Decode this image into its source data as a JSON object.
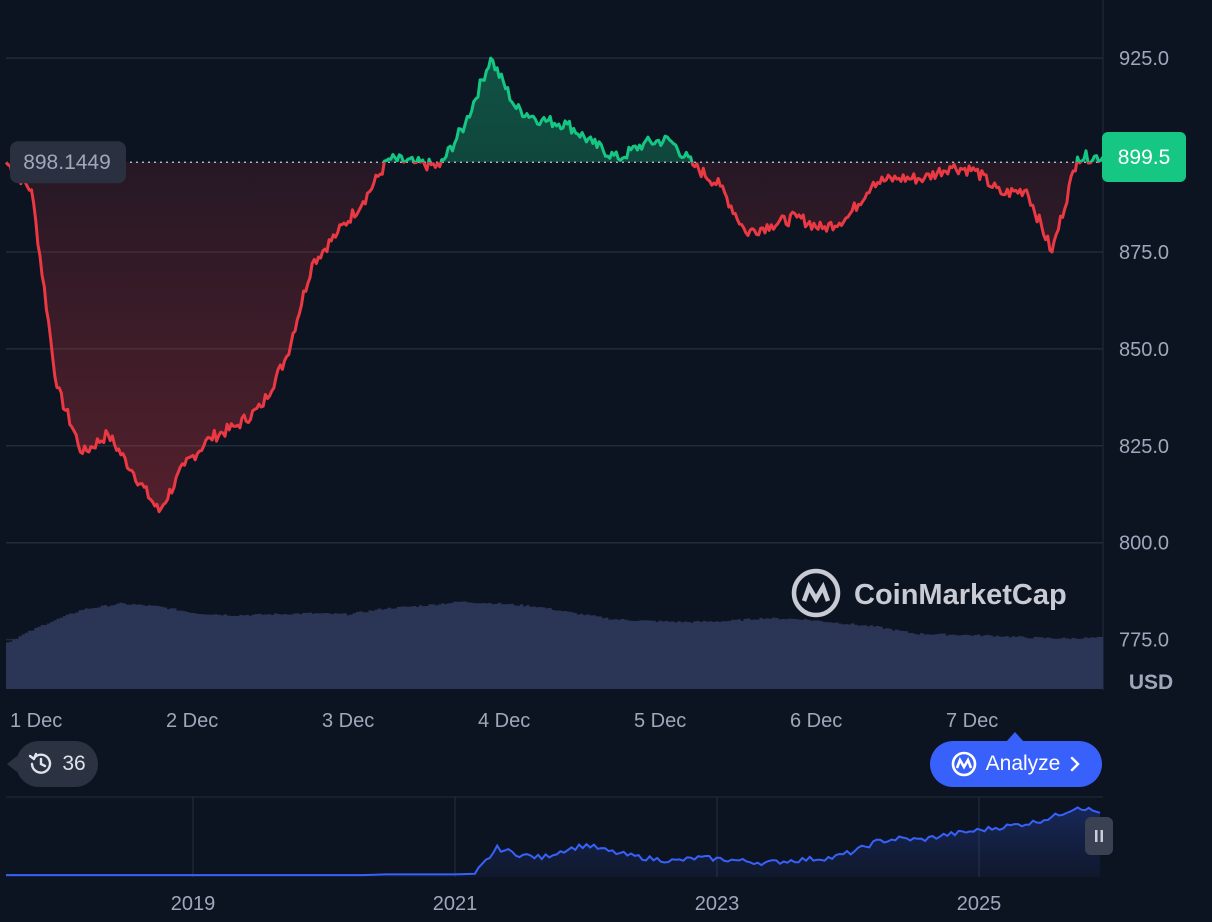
{
  "chart_data": {
    "type": "line",
    "price": {
      "x": [
        "1 Dec 00:00",
        "1 Dec 04:00",
        "1 Dec 08:00",
        "1 Dec 12:00",
        "1 Dec 16:00",
        "1 Dec 20:00",
        "2 Dec 00:00",
        "2 Dec 04:00",
        "2 Dec 08:00",
        "2 Dec 12:00",
        "2 Dec 16:00",
        "2 Dec 20:00",
        "3 Dec 00:00",
        "3 Dec 04:00",
        "3 Dec 08:00",
        "3 Dec 12:00",
        "3 Dec 16:00",
        "3 Dec 20:00",
        "4 Dec 00:00",
        "4 Dec 04:00",
        "4 Dec 08:00",
        "4 Dec 12:00",
        "4 Dec 16:00",
        "4 Dec 20:00",
        "5 Dec 00:00",
        "5 Dec 04:00",
        "5 Dec 08:00",
        "5 Dec 12:00",
        "5 Dec 16:00",
        "5 Dec 20:00",
        "6 Dec 00:00",
        "6 Dec 04:00",
        "6 Dec 08:00",
        "6 Dec 12:00",
        "6 Dec 16:00",
        "6 Dec 20:00",
        "7 Dec 00:00",
        "7 Dec 04:00",
        "7 Dec 08:00",
        "7 Dec 12:00",
        "7 Dec 16:00",
        "7 Dec 20:00",
        "8 Dec 00:00",
        "8 Dec 04:00"
      ],
      "values": [
        898.1,
        891,
        840,
        823,
        828,
        818,
        808,
        820,
        827,
        830,
        835,
        848,
        872,
        880,
        888,
        899,
        898,
        897,
        908,
        925,
        912,
        909,
        908,
        903,
        899,
        903,
        904,
        897,
        892,
        880,
        882,
        884,
        881,
        884,
        893,
        894,
        894,
        897,
        896,
        890,
        891,
        875,
        899.5,
        899.5
      ]
    },
    "volume_relative": [
      0.48,
      0.67,
      0.82,
      0.88,
      0.85,
      0.78,
      0.76,
      0.77,
      0.78,
      0.77,
      0.83,
      0.86,
      0.9,
      0.88,
      0.85,
      0.78,
      0.72,
      0.7,
      0.69,
      0.7,
      0.73,
      0.72,
      0.68,
      0.64,
      0.57,
      0.56,
      0.55,
      0.53,
      0.52,
      0.53
    ],
    "reference_price": "898.1449",
    "current_price": "899.5",
    "y_axis": {
      "ticks": [
        "925.0",
        "875.0",
        "850.0",
        "825.0",
        "800.0",
        "775.0"
      ],
      "ylim": [
        762,
        940
      ],
      "unit": "USD"
    },
    "x_axis": {
      "ticks": [
        "1 Dec",
        "2 Dec",
        "3 Dec",
        "4 Dec",
        "5 Dec",
        "6 Dec",
        "7 Dec"
      ]
    },
    "overview": {
      "x_ticks": [
        "2019",
        "2021",
        "2023",
        "2025"
      ],
      "values": [
        3,
        3,
        3,
        3,
        3,
        3,
        3,
        3,
        3,
        3,
        3,
        3,
        3,
        3,
        3,
        3,
        3,
        4,
        4,
        4,
        4,
        5,
        45,
        35,
        30,
        42,
        50,
        40,
        33,
        28,
        25,
        30,
        28,
        25,
        22,
        25,
        28,
        30,
        40,
        55,
        60,
        58,
        65,
        70,
        75,
        80,
        85,
        95,
        110,
        100
      ],
      "ylim": [
        0,
        120
      ]
    },
    "colors": {
      "up": "#16c784",
      "down": "#ea3943",
      "volume": "#2b3555",
      "overview_line": "#3861fb"
    }
  },
  "watermark": {
    "brand": "CoinMarketCap",
    "icon": "coinmarketcap-logo-icon"
  },
  "controls": {
    "history_count": "36",
    "history_icon": "history-clock-icon",
    "analyze_label": "Analyze",
    "analyze_icon": "coinmarketcap-logo-icon",
    "pause_icon": "pause-handle-icon"
  }
}
